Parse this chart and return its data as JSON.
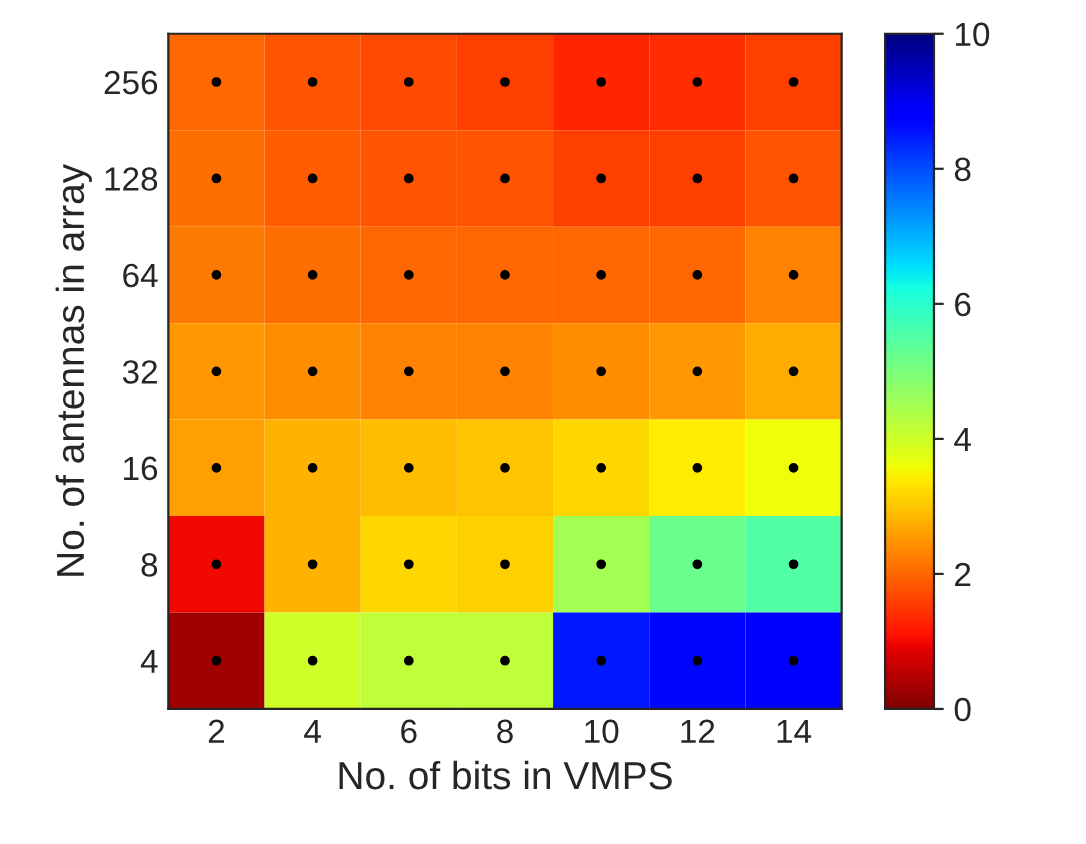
{
  "chart_data": {
    "type": "heatmap",
    "xlabel": "No. of bits in VMPS",
    "ylabel": "No. of antennas in array",
    "categories": [
      "2",
      "4",
      "6",
      "8",
      "10",
      "12",
      "14"
    ],
    "y_categories": [
      "256",
      "128",
      "64",
      "32",
      "16",
      "8",
      "4"
    ],
    "cells": [
      [
        2.0,
        1.8,
        1.7,
        1.6,
        1.3,
        1.4,
        1.6
      ],
      [
        2.1,
        1.9,
        1.8,
        1.8,
        1.6,
        1.6,
        1.8
      ],
      [
        2.2,
        2.1,
        2.0,
        2.0,
        2.0,
        2.0,
        2.3
      ],
      [
        2.5,
        2.4,
        2.3,
        2.3,
        2.4,
        2.5,
        2.7
      ],
      [
        2.6,
        2.8,
        2.9,
        3.0,
        3.2,
        3.4,
        3.6
      ],
      [
        1.0,
        2.8,
        3.2,
        3.1,
        4.5,
        5.2,
        5.5
      ],
      [
        0.3,
        4.0,
        4.2,
        4.2,
        8.5,
        8.7,
        8.8
      ]
    ],
    "clim": [
      0,
      10
    ],
    "cticks": [
      0,
      2,
      4,
      6,
      8,
      10
    ],
    "marker": "circle"
  }
}
